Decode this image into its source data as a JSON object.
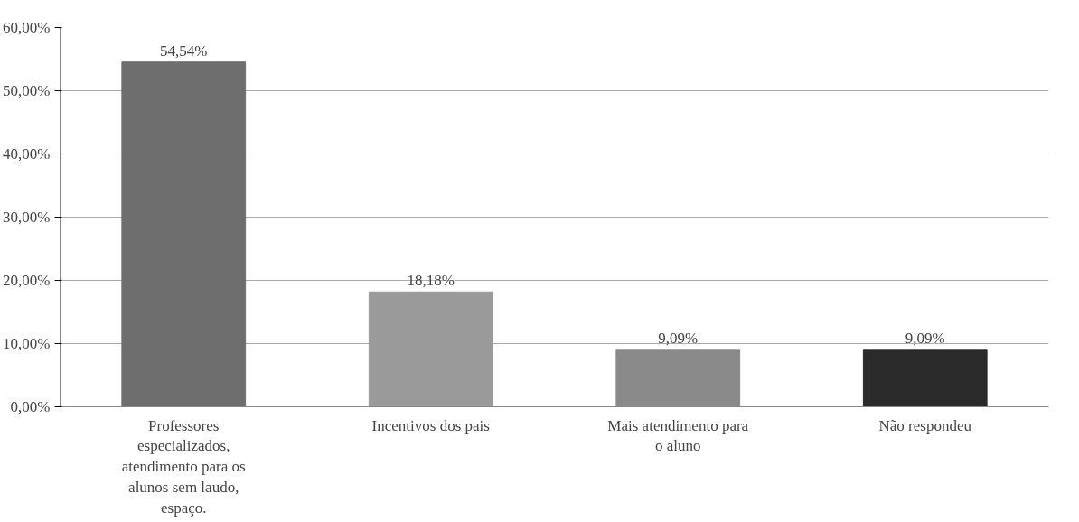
{
  "chart_data": {
    "type": "bar",
    "categories": [
      "Professores especializados, atendimento para os alunos sem laudo, espaço.",
      "Incentivos dos pais",
      "Mais atendimento para o aluno",
      "Não respondeu"
    ],
    "values": [
      54.54,
      18.18,
      9.09,
      9.09
    ],
    "value_labels": [
      "54,54%",
      "18,18%",
      "9,09%",
      "9,09%"
    ],
    "colors": [
      "#6e6e6e",
      "#9a9a9a",
      "#8a8a8a",
      "#2a2a2a"
    ],
    "ylim": [
      0,
      60
    ],
    "yticks": [
      {
        "value": 0,
        "label": "0,00%"
      },
      {
        "value": 10,
        "label": "10,00%"
      },
      {
        "value": 20,
        "label": "20,00%"
      },
      {
        "value": 30,
        "label": "30,00%"
      },
      {
        "value": 40,
        "label": "40,00%"
      },
      {
        "value": 50,
        "label": "50,00%"
      },
      {
        "value": 60,
        "label": "60,00%"
      }
    ],
    "grid": "y"
  }
}
